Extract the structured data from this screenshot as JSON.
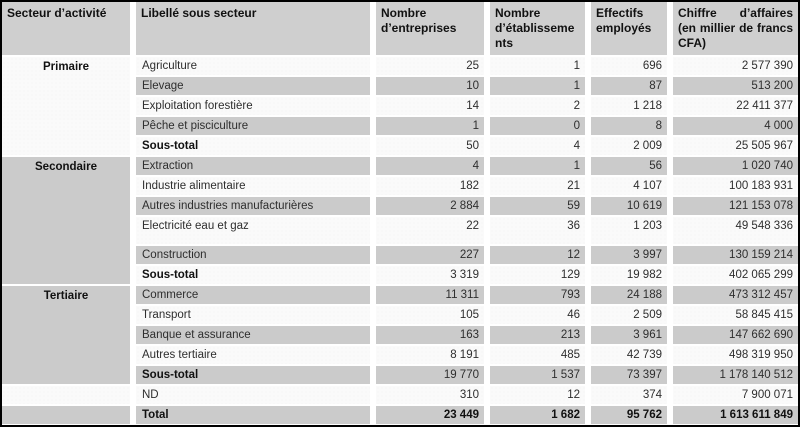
{
  "table": {
    "columns": [
      {
        "label": "Secteur d’activité"
      },
      {
        "label": "Libellé sous secteur"
      },
      {
        "label": "Nombre d’entreprises"
      },
      {
        "label": "Nombre d’établissements"
      },
      {
        "label": "Effectifs employés"
      },
      {
        "label": "Chiffre d’affaires (en millier de francs CFA)"
      }
    ],
    "colors": {
      "row_gray": "#cbcbcb",
      "row_light": "#fafafa",
      "header_bg": "#cfcfcf",
      "frame_border": "#000000",
      "text": "#2e2e2e"
    },
    "sections": [
      {
        "name": "Primaire",
        "shaded": false,
        "rows": [
          {
            "label": "Agriculture",
            "type": "data",
            "values": [
              "25",
              "1",
              "696",
              "2 577 390"
            ]
          },
          {
            "label": "Elevage",
            "type": "data",
            "values": [
              "10",
              "1",
              "87",
              "513 200"
            ]
          },
          {
            "label": "Exploitation forestière",
            "type": "data",
            "values": [
              "14",
              "2",
              "1 218",
              "22 411 377"
            ]
          },
          {
            "label": "Pêche et pisciculture",
            "type": "data",
            "values": [
              "1",
              "0",
              "8",
              "4 000"
            ]
          },
          {
            "label": "Sous-total",
            "type": "subtotal",
            "values": [
              "50",
              "4",
              "2 009",
              "25 505 967"
            ]
          }
        ]
      },
      {
        "name": "Secondaire",
        "shaded": true,
        "rows": [
          {
            "label": "Extraction",
            "type": "data",
            "values": [
              "4",
              "1",
              "56",
              "1 020 740"
            ]
          },
          {
            "label": "Industrie alimentaire",
            "type": "data",
            "values": [
              "182",
              "21",
              "4 107",
              "100 183 931"
            ]
          },
          {
            "label": "Autres industries manufacturières",
            "type": "data",
            "values": [
              "2 884",
              "59",
              "10 619",
              "121 153 078"
            ]
          },
          {
            "label": "Electricité eau et gaz",
            "type": "data",
            "tall": true,
            "values": [
              "22",
              "36",
              "1 203",
              "49 548 336"
            ]
          },
          {
            "label": "Construction",
            "type": "data",
            "values": [
              "227",
              "12",
              "3 997",
              "130 159 214"
            ]
          },
          {
            "label": "Sous-total",
            "type": "subtotal",
            "values": [
              "3 319",
              "129",
              "19 982",
              "402 065 299"
            ]
          }
        ]
      },
      {
        "name": "Tertiaire",
        "shaded": true,
        "rows": [
          {
            "label": "Commerce",
            "type": "data",
            "values": [
              "11 311",
              "793",
              "24 188",
              "473 312 457"
            ]
          },
          {
            "label": "Transport",
            "type": "data",
            "values": [
              "105",
              "46",
              "2 509",
              "58 845 415"
            ]
          },
          {
            "label": "Banque et assurance",
            "type": "data",
            "values": [
              "163",
              "213",
              "3 961",
              "147 662 690"
            ]
          },
          {
            "label": "Autres tertiaire",
            "type": "data",
            "values": [
              "8 191",
              "485",
              "42 739",
              "498 319 950"
            ]
          },
          {
            "label": "Sous-total",
            "type": "subtotal",
            "values": [
              "19 770",
              "1 537",
              "73 397",
              "1 178 140 512"
            ]
          }
        ]
      },
      {
        "name": "",
        "shaded": false,
        "rows": [
          {
            "label": "ND",
            "type": "data",
            "values": [
              "310",
              "12",
              "374",
              "7 900 071"
            ]
          }
        ]
      },
      {
        "name": "",
        "shaded": true,
        "rows": [
          {
            "label": "Total",
            "type": "total",
            "values": [
              "23 449",
              "1 682",
              "95 762",
              "1 613 611 849"
            ]
          }
        ]
      }
    ]
  }
}
